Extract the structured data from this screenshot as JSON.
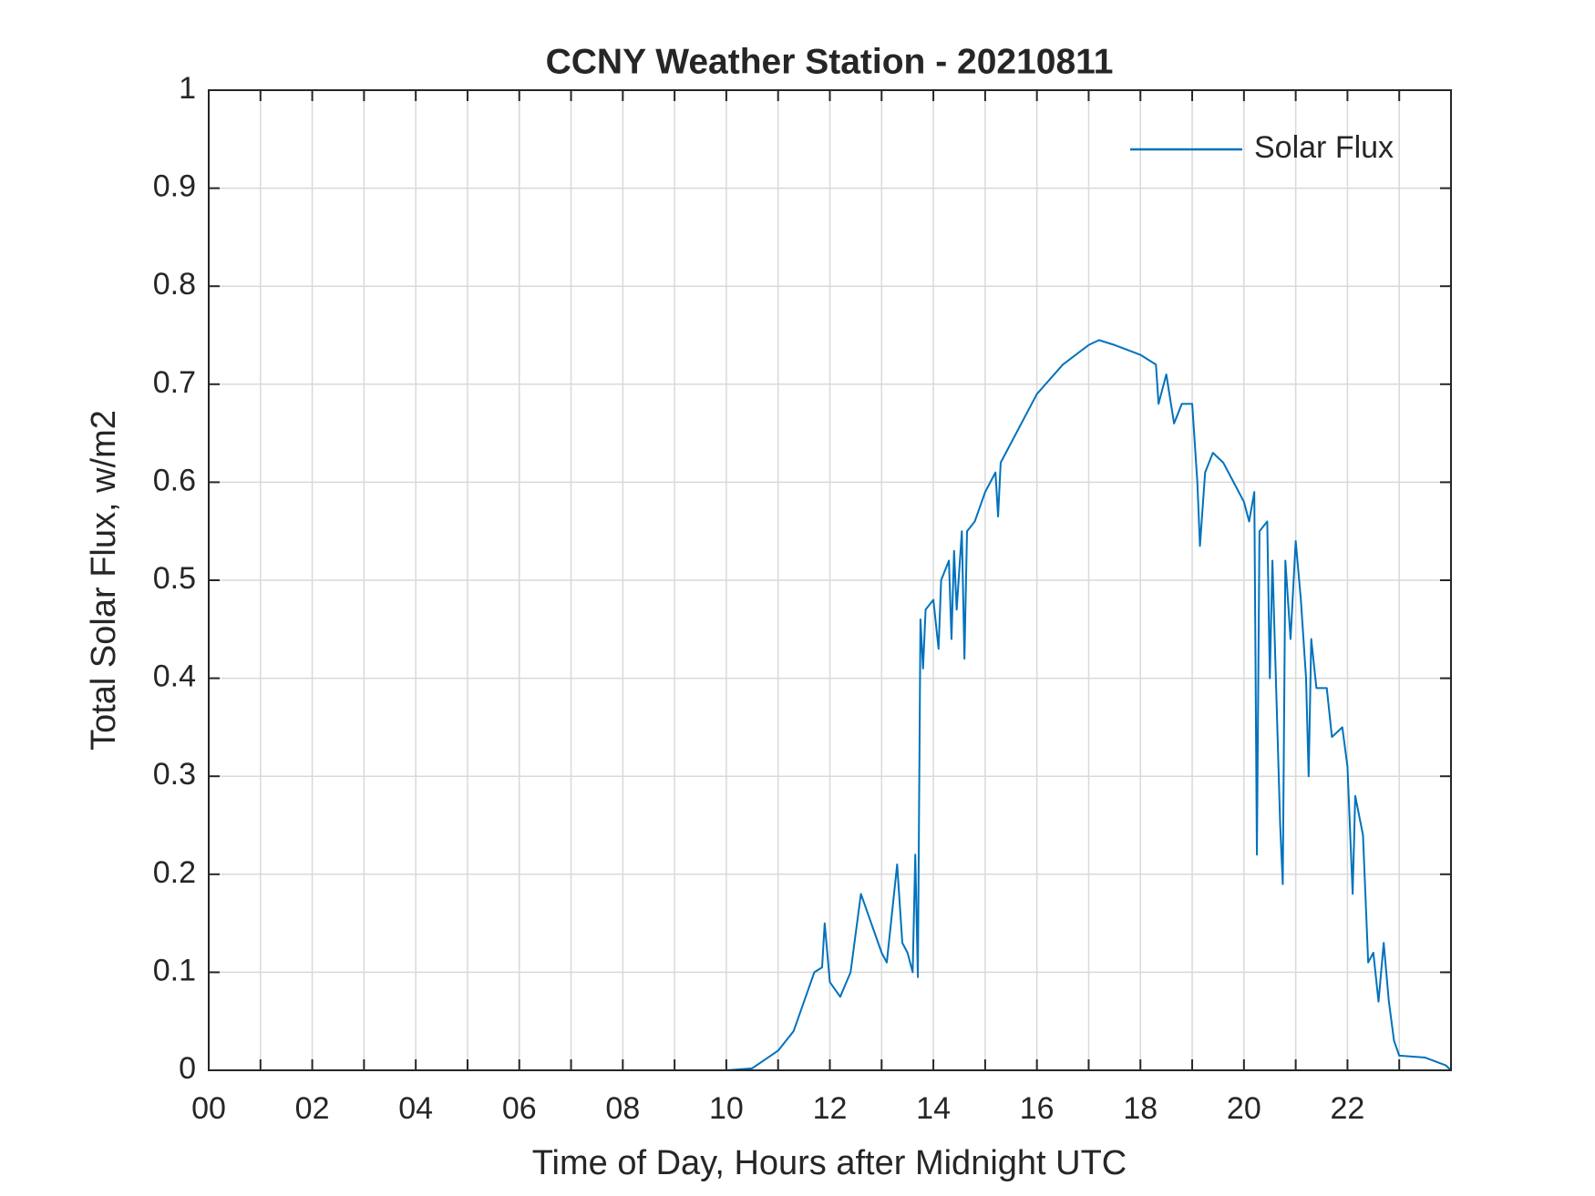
{
  "chart_data": {
    "type": "line",
    "title": "CCNY Weather Station - 20210811",
    "xlabel": "Time of Day, Hours after Midnight UTC",
    "ylabel": "Total Solar Flux, w/m2",
    "x": [
      0,
      10,
      10.5,
      11,
      11.3,
      11.5,
      11.7,
      11.85,
      11.9,
      12.0,
      12.2,
      12.4,
      12.6,
      12.8,
      13.0,
      13.1,
      13.3,
      13.4,
      13.5,
      13.6,
      13.65,
      13.7,
      13.75,
      13.8,
      13.85,
      14.0,
      14.1,
      14.15,
      14.3,
      14.35,
      14.4,
      14.45,
      14.55,
      14.6,
      14.65,
      14.8,
      15.0,
      15.2,
      15.25,
      15.3,
      15.5,
      15.8,
      16.0,
      16.5,
      17.0,
      17.2,
      17.5,
      18.0,
      18.3,
      18.35,
      18.5,
      18.65,
      18.8,
      19.0,
      19.1,
      19.15,
      19.25,
      19.4,
      19.6,
      19.8,
      20.0,
      20.1,
      20.2,
      20.25,
      20.3,
      20.45,
      20.5,
      20.55,
      20.7,
      20.75,
      20.8,
      20.9,
      21.0,
      21.1,
      21.2,
      21.25,
      21.3,
      21.4,
      21.6,
      21.7,
      21.9,
      22.0,
      22.1,
      22.15,
      22.3,
      22.4,
      22.5,
      22.6,
      22.7,
      22.8,
      22.9,
      23.0,
      23.5,
      23.9,
      24.0
    ],
    "series": [
      {
        "name": "Solar Flux",
        "color": "#0072bd",
        "values": [
          0,
          0,
          0.002,
          0.02,
          0.04,
          0.07,
          0.1,
          0.105,
          0.15,
          0.09,
          0.075,
          0.1,
          0.18,
          0.15,
          0.12,
          0.11,
          0.21,
          0.13,
          0.12,
          0.1,
          0.22,
          0.095,
          0.46,
          0.41,
          0.47,
          0.48,
          0.43,
          0.5,
          0.52,
          0.44,
          0.53,
          0.47,
          0.55,
          0.42,
          0.55,
          0.56,
          0.59,
          0.61,
          0.565,
          0.62,
          0.64,
          0.67,
          0.69,
          0.72,
          0.74,
          0.745,
          0.74,
          0.73,
          0.72,
          0.68,
          0.71,
          0.66,
          0.68,
          0.68,
          0.6,
          0.535,
          0.61,
          0.63,
          0.62,
          0.6,
          0.58,
          0.56,
          0.59,
          0.22,
          0.55,
          0.56,
          0.4,
          0.52,
          0.25,
          0.19,
          0.52,
          0.44,
          0.54,
          0.48,
          0.4,
          0.3,
          0.44,
          0.39,
          0.39,
          0.34,
          0.35,
          0.31,
          0.18,
          0.28,
          0.24,
          0.11,
          0.12,
          0.07,
          0.13,
          0.07,
          0.03,
          0.015,
          0.013,
          0.005,
          0
        ]
      }
    ],
    "xlim": [
      0,
      24
    ],
    "xticks": [
      {
        "value": 0,
        "label": "00"
      },
      {
        "value": 2,
        "label": "02"
      },
      {
        "value": 4,
        "label": "04"
      },
      {
        "value": 6,
        "label": "06"
      },
      {
        "value": 8,
        "label": "08"
      },
      10,
      12,
      14,
      16,
      18,
      20,
      22
    ],
    "xminor_ticks": [
      1,
      3,
      5,
      7,
      9,
      11,
      13,
      15,
      17,
      19,
      21,
      23
    ],
    "ylim": [
      0,
      1
    ],
    "yticks": [
      0,
      0.1,
      0.2,
      0.3,
      0.4,
      0.5,
      0.6,
      0.7,
      0.8,
      0.9,
      1
    ],
    "grid": true,
    "legend": "upper right"
  }
}
